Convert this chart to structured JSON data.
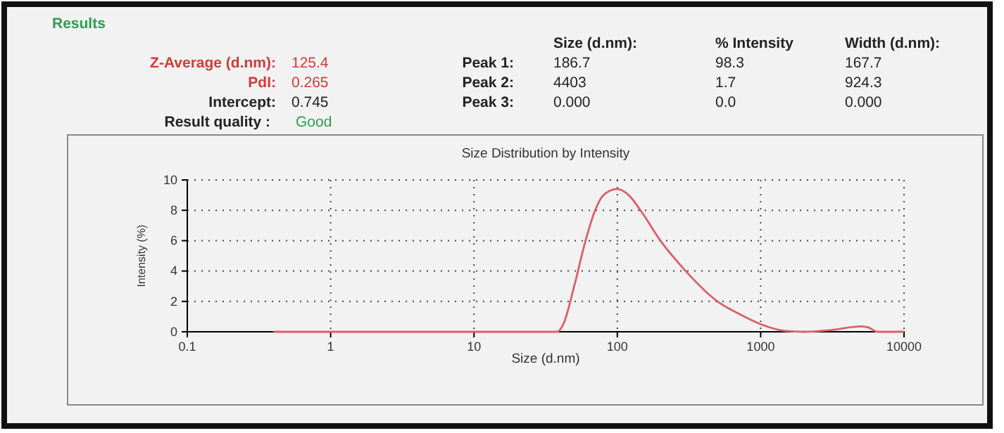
{
  "chart_data": {
    "type": "line",
    "title": "Size Distribution by Intensity",
    "xlabel": "Size (d.nm)",
    "ylabel": "Intensity (%)",
    "x": [
      0.4,
      38,
      42,
      50,
      60,
      70,
      80,
      100,
      120,
      150,
      200,
      300,
      500,
      700,
      1000,
      1500,
      2000,
      3000,
      5000,
      5600,
      6500,
      10000
    ],
    "series": [
      {
        "color": "#d9606a",
        "values": [
          0,
          0,
          0.5,
          3,
          6,
          8,
          9,
          9.4,
          9,
          7.8,
          6,
          4,
          2,
          1.2,
          0.5,
          0.05,
          0,
          0.1,
          0.35,
          0.3,
          0,
          0
        ]
      }
    ],
    "xlim": [
      0.1,
      10000
    ],
    "xticks": [
      0.1,
      1,
      10,
      100,
      1000,
      10000
    ],
    "ylim": [
      0,
      10
    ],
    "yticks": [
      0,
      2,
      4,
      6,
      8,
      10
    ],
    "log": "x",
    "grid": true,
    "line_style": "solid",
    "marker": "none",
    "annotations": [
      "Results",
      "Z-Average (d.nm):",
      "125.4",
      "PdI:",
      "0.265",
      "Intercept:",
      "0.745",
      "Result quality :",
      "Good",
      "Size (d.nm):",
      "% Intensity",
      "Width (d.nm):",
      "Peak 1:",
      "186.7",
      "98.3",
      "167.7",
      "Peak 2:",
      "4403",
      "1.7",
      "924.3",
      "Peak 3:",
      "0.000",
      "0.0",
      "0.000"
    ]
  }
}
